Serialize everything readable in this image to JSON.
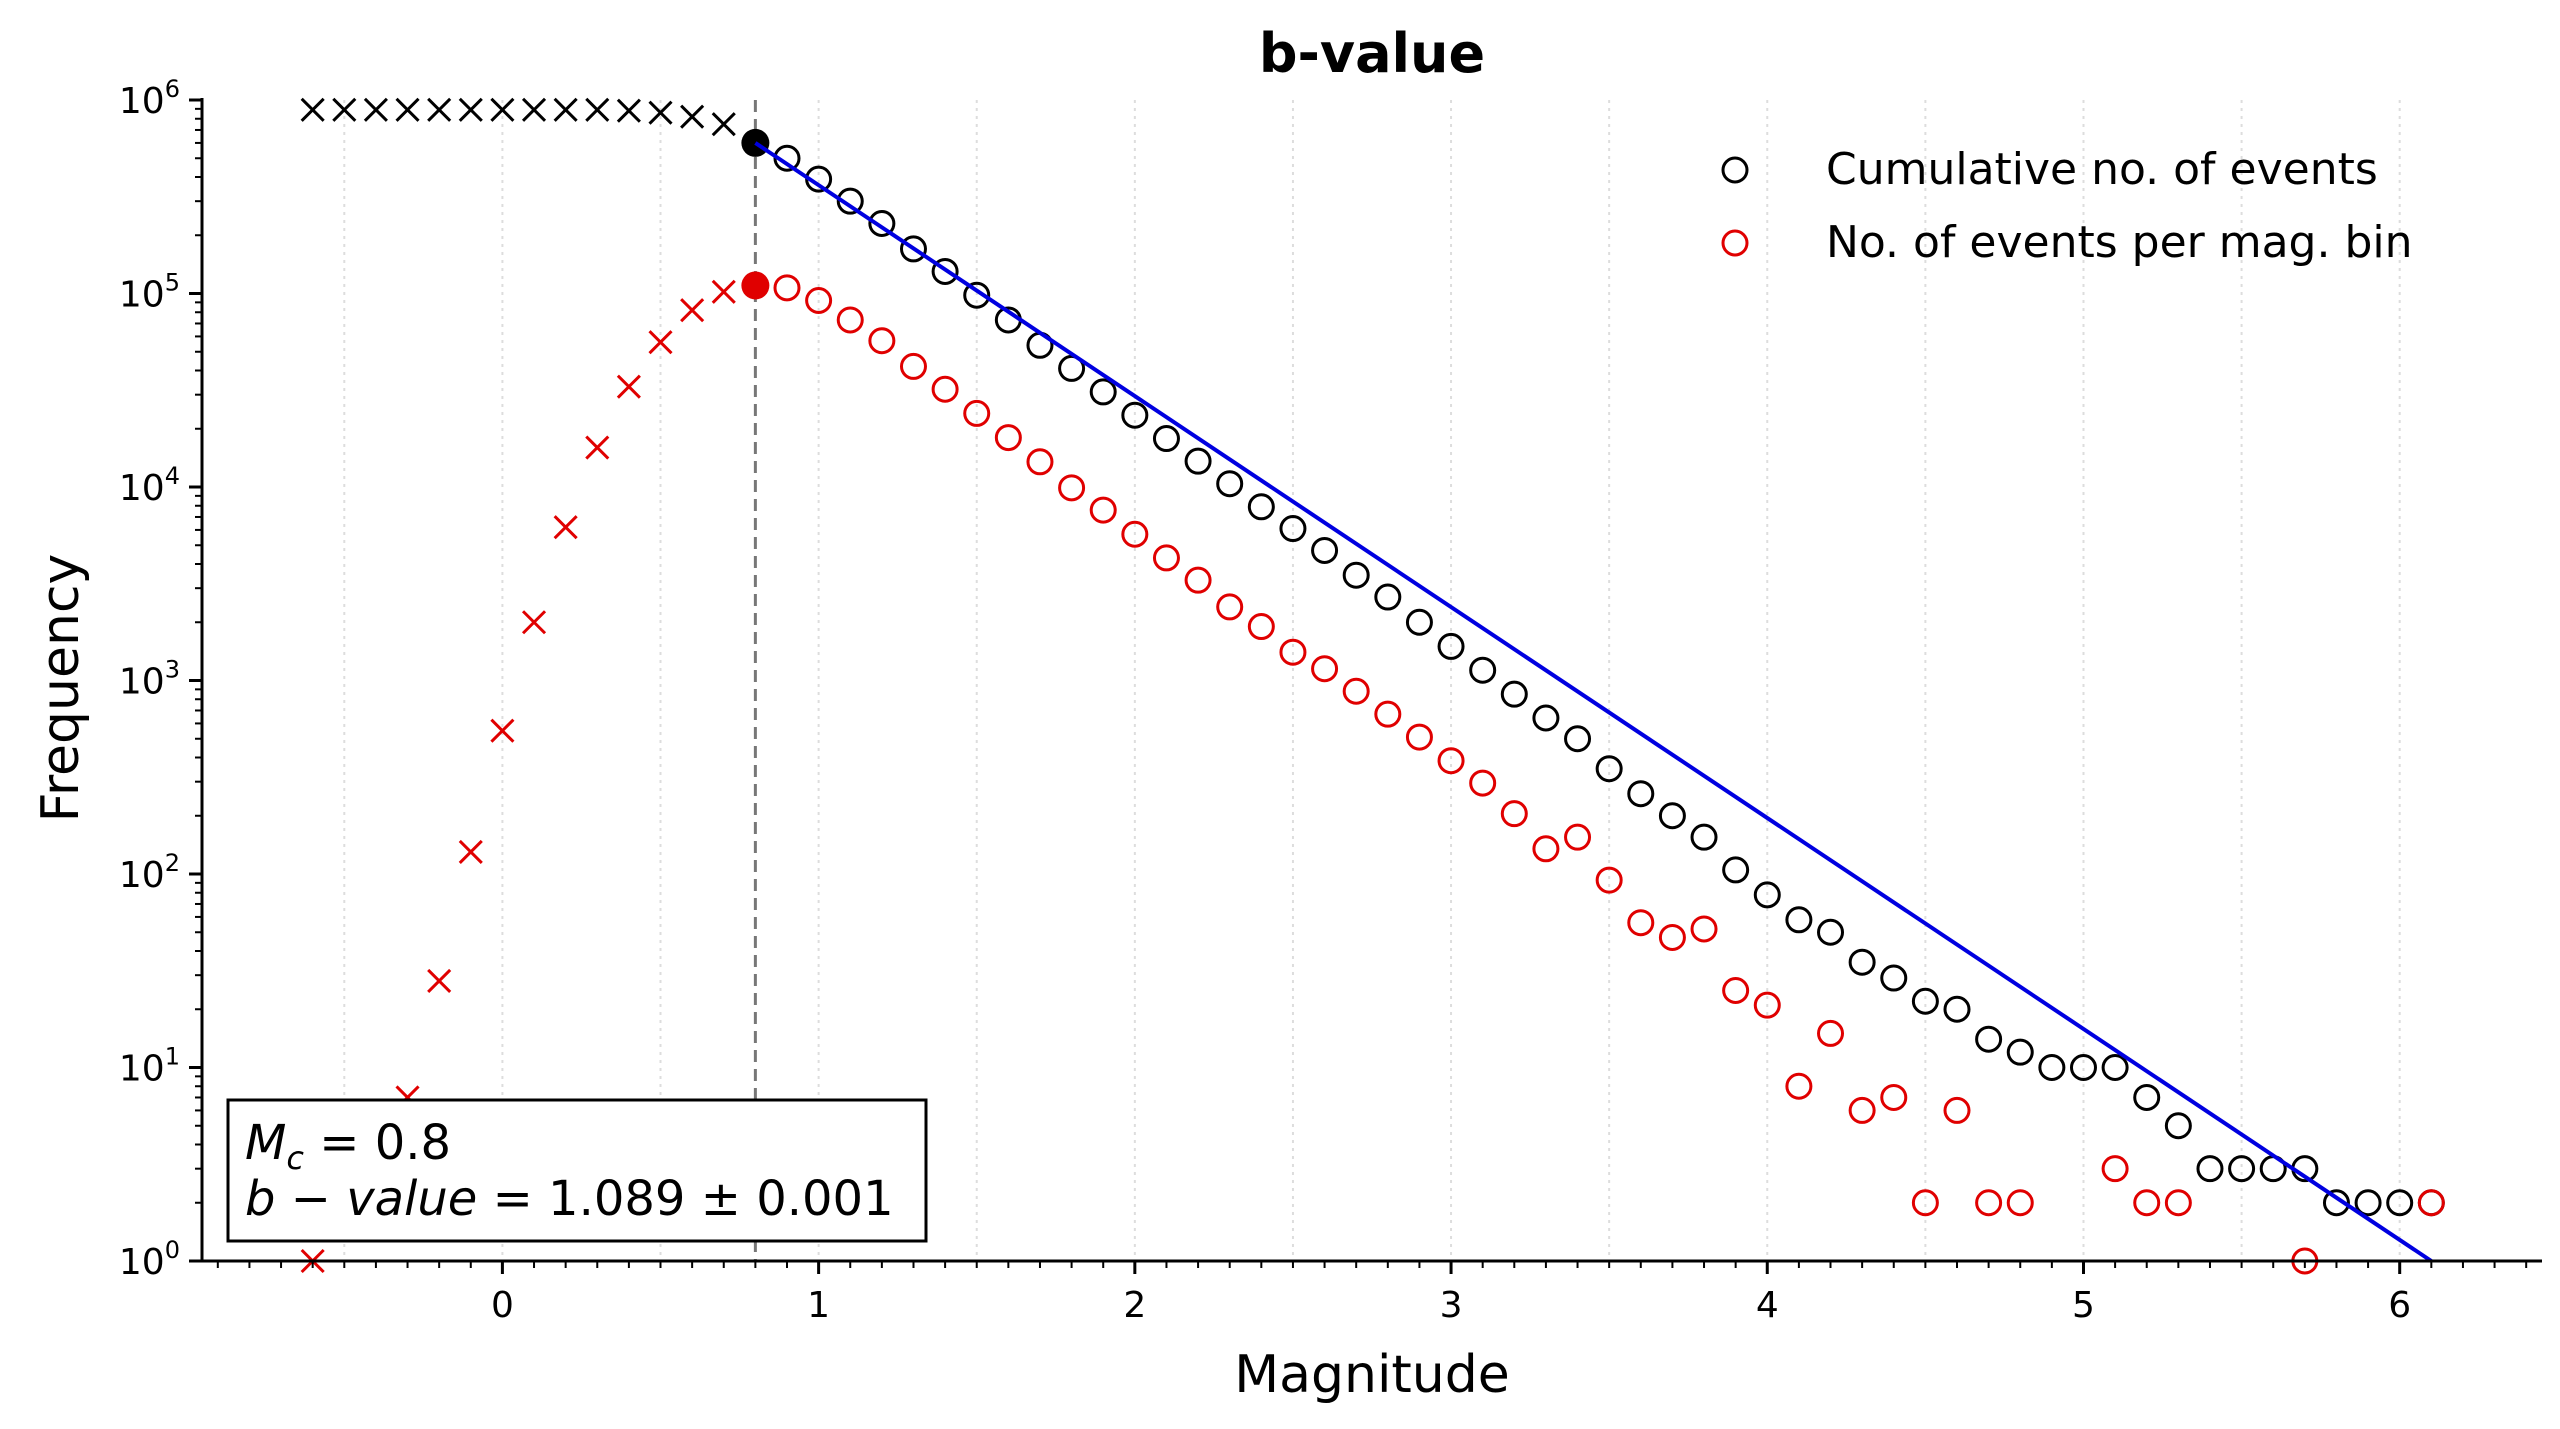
{
  "chart_data": {
    "type": "scatter",
    "title": "b-value",
    "xlabel": "Magnitude",
    "ylabel": "Frequency",
    "xlim": [
      -0.95,
      6.45
    ],
    "ylim": [
      1,
      1000000
    ],
    "y_scale": "log",
    "x_ticks": [
      {
        "value": 0,
        "label": "0"
      },
      {
        "value": 1,
        "label": "1"
      },
      {
        "value": 2,
        "label": "2"
      },
      {
        "value": 3,
        "label": "3"
      },
      {
        "value": 4,
        "label": "4"
      },
      {
        "value": 5,
        "label": "5"
      },
      {
        "value": 6,
        "label": "6"
      }
    ],
    "y_ticks": [
      {
        "exp": 0,
        "base": "10",
        "sup": "0"
      },
      {
        "exp": 1,
        "base": "10",
        "sup": "1"
      },
      {
        "exp": 2,
        "base": "10",
        "sup": "2"
      },
      {
        "exp": 3,
        "base": "10",
        "sup": "3"
      },
      {
        "exp": 4,
        "base": "10",
        "sup": "4"
      },
      {
        "exp": 5,
        "base": "10",
        "sup": "5"
      },
      {
        "exp": 6,
        "base": "10",
        "sup": "6"
      }
    ],
    "grid": "vertical dotted at minor x ticks",
    "legend": "top-right",
    "colors": {
      "cumulative": "#000000",
      "per_bin": "#e00000",
      "fit": "#0000e0",
      "mc_line": "#777777"
    },
    "series": [
      {
        "name": "Cumulative no. of events",
        "role": "cumulative",
        "marker": "open-circle",
        "x": [
          0.9,
          1.0,
          1.1,
          1.2,
          1.3,
          1.4,
          1.5,
          1.6,
          1.7,
          1.8,
          1.9,
          2.0,
          2.1,
          2.2,
          2.3,
          2.4,
          2.5,
          2.6,
          2.7,
          2.8,
          2.9,
          3.0,
          3.1,
          3.2,
          3.3,
          3.4,
          3.5,
          3.6,
          3.7,
          3.8,
          3.9,
          4.0,
          4.1,
          4.2,
          4.3,
          4.4,
          4.5,
          4.6,
          4.7,
          4.8,
          4.9,
          5.0,
          5.1,
          5.2,
          5.3,
          5.4,
          5.5,
          5.6,
          5.7,
          5.8,
          5.9,
          6.0,
          6.1
        ],
        "y": [
          500000,
          390000,
          300000,
          230000,
          170000,
          130000,
          98000,
          73000,
          54000,
          41000,
          31000,
          23500,
          17800,
          13600,
          10400,
          7900,
          6100,
          4700,
          3500,
          2700,
          2000,
          1500,
          1130,
          850,
          640,
          500,
          350,
          260,
          200,
          155,
          105,
          78,
          58,
          50,
          35,
          29,
          22,
          20,
          14,
          12,
          10,
          10,
          10,
          7,
          5,
          3,
          3,
          3,
          3,
          2,
          2,
          2,
          2
        ]
      },
      {
        "name": "No. of events per mag. bin",
        "role": "per_bin",
        "marker": "open-circle",
        "x": [
          0.9,
          1.0,
          1.1,
          1.2,
          1.3,
          1.4,
          1.5,
          1.6,
          1.7,
          1.8,
          1.9,
          2.0,
          2.1,
          2.2,
          2.3,
          2.4,
          2.5,
          2.6,
          2.7,
          2.8,
          2.9,
          3.0,
          3.1,
          3.2,
          3.3,
          3.4,
          3.5,
          3.6,
          3.7,
          3.8,
          3.9,
          4.0,
          4.1,
          4.2,
          4.3,
          4.4,
          4.5,
          4.6,
          4.7,
          4.8,
          5.1,
          5.2,
          5.3,
          5.7,
          6.1
        ],
        "y": [
          107000,
          92000,
          73000,
          57000,
          42000,
          32000,
          24000,
          18000,
          13500,
          9900,
          7600,
          5700,
          4300,
          3300,
          2400,
          1900,
          1400,
          1150,
          880,
          670,
          510,
          385,
          295,
          205,
          135,
          155,
          93,
          56,
          47,
          52,
          25,
          21,
          8,
          15,
          6,
          7,
          2,
          6,
          2,
          2,
          3,
          2,
          2,
          1,
          2
        ]
      },
      {
        "name": "",
        "role": "cumulative-below-mc",
        "marker": "x",
        "x": [
          -0.6,
          -0.5,
          -0.4,
          -0.3,
          -0.2,
          -0.1,
          0.0,
          0.1,
          0.2,
          0.3,
          0.4,
          0.5,
          0.6,
          0.7
        ],
        "y": [
          890000,
          890000,
          890000,
          890000,
          890000,
          890000,
          890000,
          890000,
          890000,
          890000,
          880000,
          860000,
          820000,
          750000
        ]
      },
      {
        "name": "",
        "role": "per-bin-below-mc",
        "marker": "x",
        "x": [
          -0.6,
          -0.3,
          -0.2,
          -0.1,
          0.0,
          0.1,
          0.2,
          0.3,
          0.4,
          0.5,
          0.6,
          0.7
        ],
        "y": [
          1,
          7,
          28,
          130,
          550,
          2000,
          6200,
          16000,
          33000,
          56000,
          82000,
          102000
        ]
      },
      {
        "name": "",
        "role": "mc-points",
        "marker": "filled-circle",
        "points": [
          {
            "x": 0.8,
            "y": 600000,
            "color": "cumulative"
          },
          {
            "x": 0.8,
            "y": 110000,
            "color": "per_bin"
          }
        ]
      },
      {
        "name": "",
        "role": "fit",
        "marker": "line",
        "x": [
          0.8,
          6.1
        ],
        "y": [
          600000,
          1
        ]
      }
    ],
    "mc": 0.8,
    "annotation": {
      "line1_symbol": "M",
      "line1_sub": "c",
      "line1_rest": " = 0.8",
      "line2_symbol": "b − value",
      "line2_rest": " = 1.089 ± 0.001"
    }
  }
}
